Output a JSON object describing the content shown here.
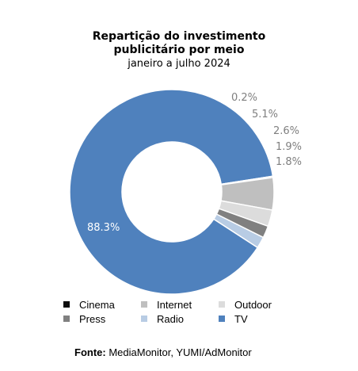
{
  "chart_data": {
    "type": "pie",
    "title": "Repartição do investimento publicitário por meio",
    "title_lines": [
      "Repartição do investimento",
      "publicitário por meio"
    ],
    "subtitle": "janeiro a julho 2024",
    "donut": true,
    "slices": [
      {
        "label": "Cinema",
        "value": 0.2,
        "display": "0.2%",
        "color": "#0d0d0d"
      },
      {
        "label": "Internet",
        "value": 5.1,
        "display": "5.1%",
        "color": "#bfbfbf"
      },
      {
        "label": "Outdoor",
        "value": 2.6,
        "display": "2.6%",
        "color": "#dcdcdc"
      },
      {
        "label": "Press",
        "value": 1.9,
        "display": "1.9%",
        "color": "#808080"
      },
      {
        "label": "Radio",
        "value": 1.8,
        "display": "1.8%",
        "color": "#b8cce4"
      },
      {
        "label": "TV",
        "value": 88.3,
        "display": "88.3%",
        "color": "#4f81bd"
      }
    ],
    "legend_order": [
      "Cinema",
      "Internet",
      "Outdoor",
      "Press",
      "Radio",
      "TV"
    ],
    "legend_placement": "bottom"
  },
  "source": {
    "label": "Fonte:",
    "text": "MediaMonitor, YUMI/AdMonitor"
  }
}
